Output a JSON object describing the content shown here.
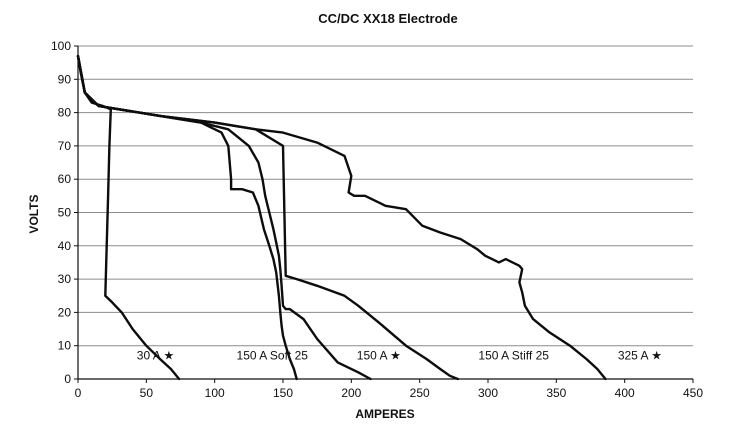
{
  "chart_data": {
    "type": "line",
    "title": "CC/DC XX18 Electrode",
    "xlabel": "AMPERES",
    "ylabel": "VOLTS",
    "xlim": [
      0,
      450
    ],
    "ylim": [
      0,
      100
    ],
    "xticks": [
      0,
      50,
      100,
      150,
      200,
      250,
      300,
      350,
      400,
      450
    ],
    "yticks": [
      0,
      10,
      20,
      30,
      40,
      50,
      60,
      70,
      80,
      90,
      100
    ],
    "grid": true,
    "series": [
      {
        "name": "30 A ★",
        "x": [
          0,
          2,
          5,
          10,
          18,
          24,
          23,
          22,
          21,
          20,
          25,
          32,
          40,
          50,
          60,
          68,
          74
        ],
        "y": [
          97,
          92,
          86,
          83,
          82,
          81,
          70,
          55,
          40,
          25,
          23,
          20,
          15,
          10,
          6,
          3,
          0
        ]
      },
      {
        "name": "150 A Soft 25",
        "x": [
          0,
          5,
          15,
          30,
          60,
          90,
          105,
          110,
          111,
          112,
          112,
          120,
          128,
          132,
          136,
          140,
          143,
          145,
          147,
          148,
          149,
          150,
          152,
          155,
          158,
          160
        ],
        "y": [
          97,
          86,
          82,
          81,
          79,
          77,
          74,
          70,
          65,
          60,
          57,
          57,
          56,
          52,
          45,
          40,
          36,
          32,
          25,
          20,
          16,
          13,
          10,
          6,
          3,
          0
        ]
      },
      {
        "name": "150 A ★",
        "x": [
          0,
          5,
          15,
          30,
          60,
          90,
          110,
          125,
          132,
          135,
          137,
          140,
          143,
          145,
          147,
          148,
          149,
          150,
          152,
          155,
          165,
          175,
          190,
          205,
          214
        ],
        "y": [
          97,
          86,
          82,
          81,
          79,
          77,
          75,
          70,
          65,
          60,
          55,
          50,
          45,
          41,
          37,
          33,
          28,
          22,
          21,
          21,
          18,
          12,
          5,
          2,
          0
        ]
      },
      {
        "name": "150 A Stiff 25",
        "x": [
          0,
          5,
          15,
          30,
          60,
          100,
          130,
          150,
          152,
          160,
          175,
          195,
          205,
          220,
          240,
          255,
          265,
          272,
          276,
          278
        ],
        "y": [
          97,
          86,
          82,
          81,
          79,
          77,
          75,
          70,
          31,
          30,
          28,
          25,
          22,
          17,
          10,
          6,
          3,
          1,
          0.3,
          0
        ]
      },
      {
        "name": "325 A ★",
        "x": [
          0,
          5,
          15,
          30,
          60,
          100,
          130,
          150,
          175,
          195,
          200,
          198,
          202,
          210,
          225,
          240,
          252,
          265,
          280,
          292,
          298,
          303,
          308,
          313,
          318,
          323,
          325,
          323,
          325,
          327,
          333,
          345,
          360,
          372,
          380,
          386
        ],
        "y": [
          97,
          86,
          82,
          81,
          79,
          77,
          75,
          74,
          71,
          67,
          61,
          56,
          55,
          55,
          52,
          51,
          46,
          44,
          42,
          39,
          37,
          36,
          35,
          36,
          35,
          34,
          33,
          29,
          26,
          22,
          18,
          14,
          10,
          6,
          3,
          0
        ]
      }
    ],
    "annotations": [
      {
        "text": "30 A ★",
        "x": 43,
        "y": 7
      },
      {
        "text": "150 A Soft 25",
        "x": 116,
        "y": 7
      },
      {
        "text": "150 A ★",
        "x": 204,
        "y": 7
      },
      {
        "text": "150 A Stiff 25",
        "x": 293,
        "y": 7
      },
      {
        "text": "325 A ★",
        "x": 395,
        "y": 7
      }
    ]
  }
}
